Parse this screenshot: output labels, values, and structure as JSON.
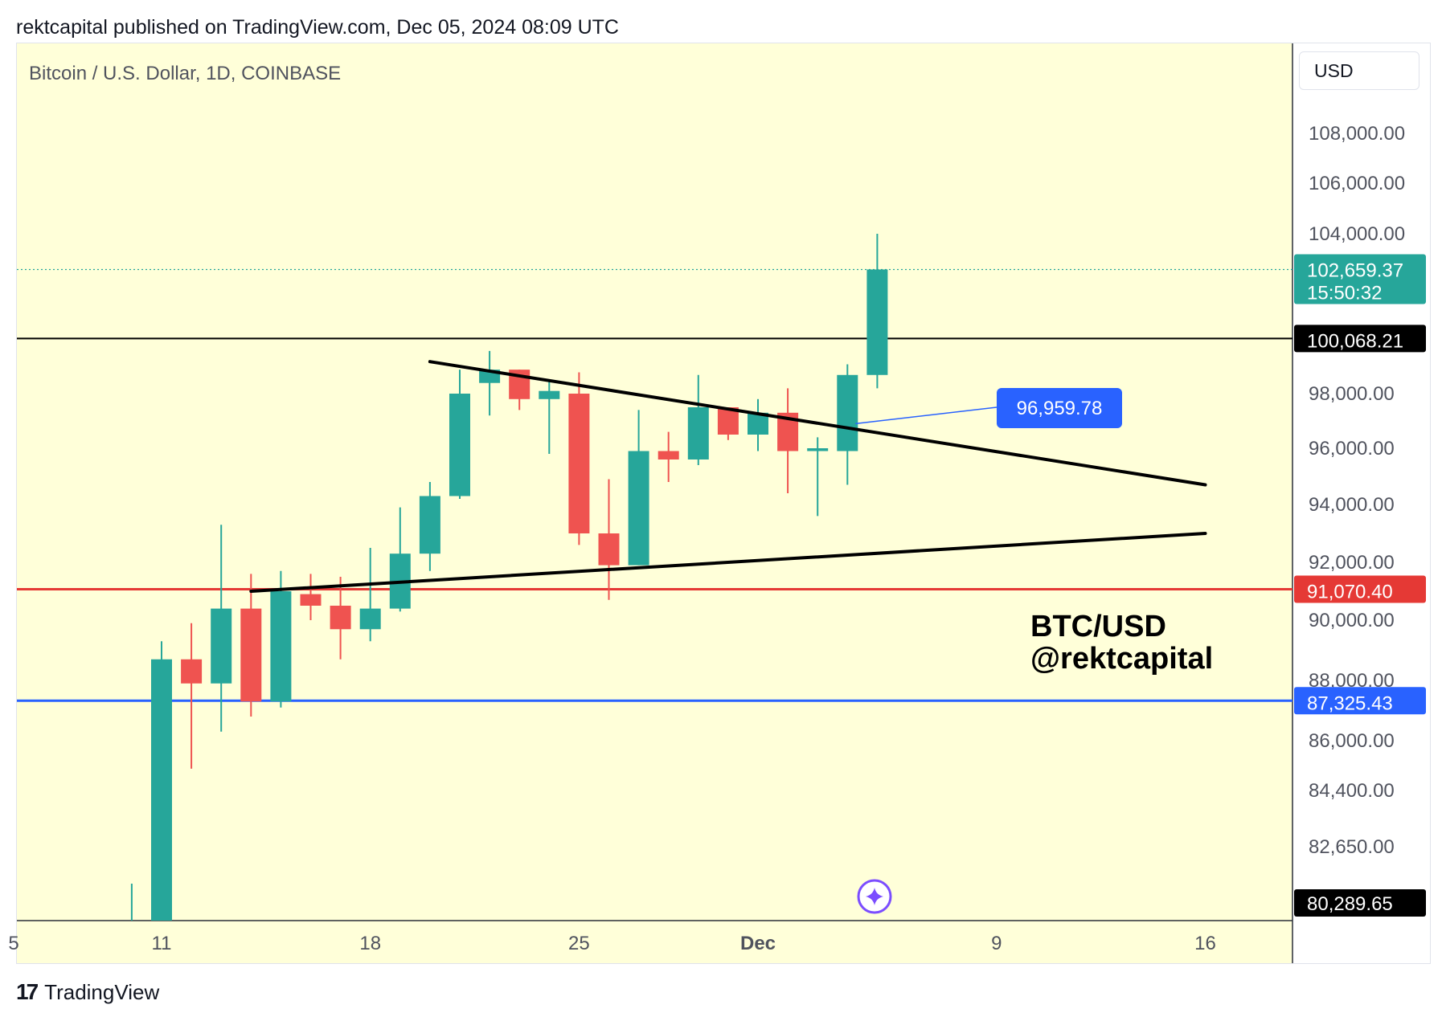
{
  "publish_line": "rektcapital published on TradingView.com, Dec 05, 2024 08:09 UTC",
  "symbol_line": "Bitcoin / U.S. Dollar, 1D, COINBASE",
  "currency_label": "USD",
  "watermark": {
    "line1": "BTC/USD",
    "line2": "@rektcapital"
  },
  "footer": {
    "brand": "TradingView",
    "logo_icon": "tradingview-logo-icon"
  },
  "colors": {
    "background": "#ffffd9",
    "up": "#26a69a",
    "down": "#ef5350",
    "red_level": "#e53935",
    "blue_level": "#2962ff",
    "trendline": "#000000",
    "annotation_blue": "#2962ff",
    "last_price": "#26a69a"
  },
  "chart_data": {
    "type": "candlestick",
    "title": "Bitcoin / U.S. Dollar, 1D, COINBASE",
    "yaxis": {
      "ticks": [
        {
          "value": 108000,
          "label": "108,000.00"
        },
        {
          "value": 106000,
          "label": "106,000.00"
        },
        {
          "value": 104000,
          "label": "104,000.00"
        },
        {
          "value": 98000,
          "label": "98,000.00"
        },
        {
          "value": 96000,
          "label": "96,000.00"
        },
        {
          "value": 94000,
          "label": "94,000.00"
        },
        {
          "value": 92000,
          "label": "92,000.00"
        },
        {
          "value": 90000,
          "label": "90,000.00"
        },
        {
          "value": 88000,
          "label": "88,000.00"
        },
        {
          "value": 86000,
          "label": "86,000.00"
        },
        {
          "value": 84400,
          "label": "84,400.00"
        },
        {
          "value": 82650,
          "label": "82,650.00"
        }
      ]
    },
    "xaxis": {
      "ticks": [
        {
          "day": 11,
          "label": "11"
        },
        {
          "day": 18,
          "label": "18"
        },
        {
          "day": 25,
          "label": "25"
        },
        {
          "day": 31,
          "label": "Dec",
          "bold": true
        },
        {
          "day": 39,
          "label": "9"
        },
        {
          "day": 46,
          "label": "16"
        }
      ],
      "edge_label": "5"
    },
    "candles": [
      {
        "date": "2024-11-10",
        "o": 80289.65,
        "h": 81500,
        "l": 80289.65,
        "c": 80289.65
      },
      {
        "date": "2024-11-11",
        "o": 80289.65,
        "h": 89300,
        "l": 80289.65,
        "c": 88700
      },
      {
        "date": "2024-11-12",
        "o": 88700,
        "h": 89900,
        "l": 85100,
        "c": 87900
      },
      {
        "date": "2024-11-13",
        "o": 87900,
        "h": 93300,
        "l": 86300,
        "c": 90400
      },
      {
        "date": "2024-11-14",
        "o": 90400,
        "h": 91600,
        "l": 86800,
        "c": 87300
      },
      {
        "date": "2024-11-15",
        "o": 87300,
        "h": 91700,
        "l": 87100,
        "c": 91000
      },
      {
        "date": "2024-11-16",
        "o": 90900,
        "h": 91600,
        "l": 90000,
        "c": 90500
      },
      {
        "date": "2024-11-17",
        "o": 90500,
        "h": 91500,
        "l": 88700,
        "c": 89700
      },
      {
        "date": "2024-11-18",
        "o": 89700,
        "h": 92500,
        "l": 89300,
        "c": 90400
      },
      {
        "date": "2024-11-19",
        "o": 90400,
        "h": 93900,
        "l": 90300,
        "c": 92300
      },
      {
        "date": "2024-11-20",
        "o": 92300,
        "h": 94800,
        "l": 91700,
        "c": 94300
      },
      {
        "date": "2024-11-21",
        "o": 94300,
        "h": 98900,
        "l": 94200,
        "c": 98000
      },
      {
        "date": "2024-11-22",
        "o": 98400,
        "h": 99600,
        "l": 97200,
        "c": 98900
      },
      {
        "date": "2024-11-23",
        "o": 98900,
        "h": 98900,
        "l": 97400,
        "c": 97800
      },
      {
        "date": "2024-11-24",
        "o": 97800,
        "h": 98500,
        "l": 95800,
        "c": 98100
      },
      {
        "date": "2024-11-25",
        "o": 98000,
        "h": 98800,
        "l": 92600,
        "c": 93000
      },
      {
        "date": "2024-11-26",
        "o": 93000,
        "h": 94900,
        "l": 90700,
        "c": 91900
      },
      {
        "date": "2024-11-27",
        "o": 91900,
        "h": 97400,
        "l": 91900,
        "c": 95900
      },
      {
        "date": "2024-11-28",
        "o": 95900,
        "h": 96600,
        "l": 94800,
        "c": 95600
      },
      {
        "date": "2024-11-29",
        "o": 95600,
        "h": 98700,
        "l": 95400,
        "c": 97500
      },
      {
        "date": "2024-11-30",
        "o": 97500,
        "h": 97500,
        "l": 96300,
        "c": 96500
      },
      {
        "date": "2024-12-01",
        "o": 96500,
        "h": 97800,
        "l": 95900,
        "c": 97300
      },
      {
        "date": "2024-12-02",
        "o": 97300,
        "h": 98200,
        "l": 94400,
        "c": 95900
      },
      {
        "date": "2024-12-03",
        "o": 95900,
        "h": 96400,
        "l": 93600,
        "c": 96000
      },
      {
        "date": "2024-12-04",
        "o": 95900,
        "h": 99100,
        "l": 94700,
        "c": 98700
      },
      {
        "date": "2024-12-05",
        "o": 98700,
        "h": 104000,
        "l": 98200,
        "c": 102659.37
      }
    ],
    "horizontal_levels": [
      {
        "name": "black-level",
        "value": 100068.21,
        "label": "100,068.21",
        "color": "#000000"
      },
      {
        "name": "red-level",
        "value": 91070.4,
        "label": "91,070.40",
        "color": "#e53935"
      },
      {
        "name": "blue-level",
        "value": 87325.43,
        "label": "87,325.43",
        "color": "#2962ff"
      }
    ],
    "trendlines": [
      {
        "name": "upper-trendline",
        "from": {
          "date": "2024-11-20",
          "value": 99200
        },
        "to": {
          "date": "2024-12-16",
          "value": 94700
        }
      },
      {
        "name": "lower-trendline",
        "from": {
          "date": "2024-11-14",
          "value": 91000
        },
        "to": {
          "date": "2024-12-16",
          "value": 93000
        }
      }
    ],
    "annotation": {
      "label": "96,959.78",
      "value": 96959.78,
      "anchor": {
        "date": "2024-12-04",
        "value": 96900
      }
    },
    "last_price": {
      "value": 102659.37,
      "label": "102,659.37",
      "countdown": "15:50:32"
    },
    "low_marker": {
      "value": 80289.65,
      "label": "80,289.65"
    }
  }
}
